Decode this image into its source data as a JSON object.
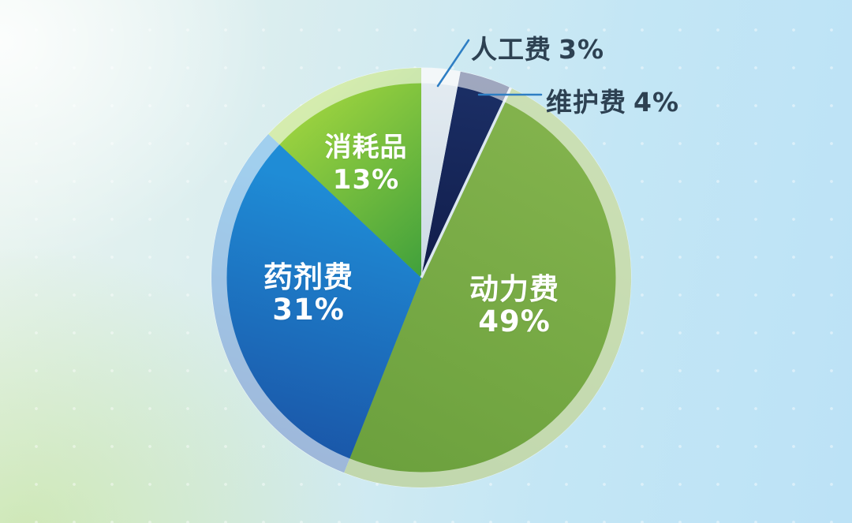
{
  "chart_data": {
    "type": "pie",
    "title": "",
    "legend_position": "none",
    "start_angle_deg": 0,
    "direction": "clockwise",
    "slice_order_from_top": [
      "人工费",
      "维护费",
      "动力费",
      "药剂费",
      "消耗品"
    ],
    "slices": [
      {
        "label": "人工费",
        "value": 3,
        "pct_label": "3%",
        "label_style": "callout-outside",
        "colors": [
          "#e3ebf1",
          "#ccdae5"
        ]
      },
      {
        "label": "维护费",
        "value": 4,
        "pct_label": "4%",
        "label_style": "callout-outside",
        "colors": [
          "#1b2f66",
          "#111d4b"
        ]
      },
      {
        "label": "动力费",
        "value": 49,
        "pct_label": "49%",
        "label_style": "inside-white",
        "colors": [
          "#83b34d",
          "#6ba03d"
        ]
      },
      {
        "label": "药剂费",
        "value": 31,
        "pct_label": "31%",
        "label_style": "inside-white",
        "colors": [
          "#1f8cd6",
          "#1a54a6"
        ]
      },
      {
        "label": "消耗品",
        "value": 13,
        "pct_label": "13%",
        "label_style": "inside-white",
        "colors": [
          "#9bd23f",
          "#42a13c"
        ]
      }
    ],
    "halo_ring_color": "#ffffff",
    "leader_line_color": "#2e7ec4",
    "callout_text_color": "#2d4152",
    "inside_label_color": "#ffffff",
    "background_colors": [
      "#e9f4ef",
      "#c3e6f5",
      "#c1e292"
    ]
  }
}
